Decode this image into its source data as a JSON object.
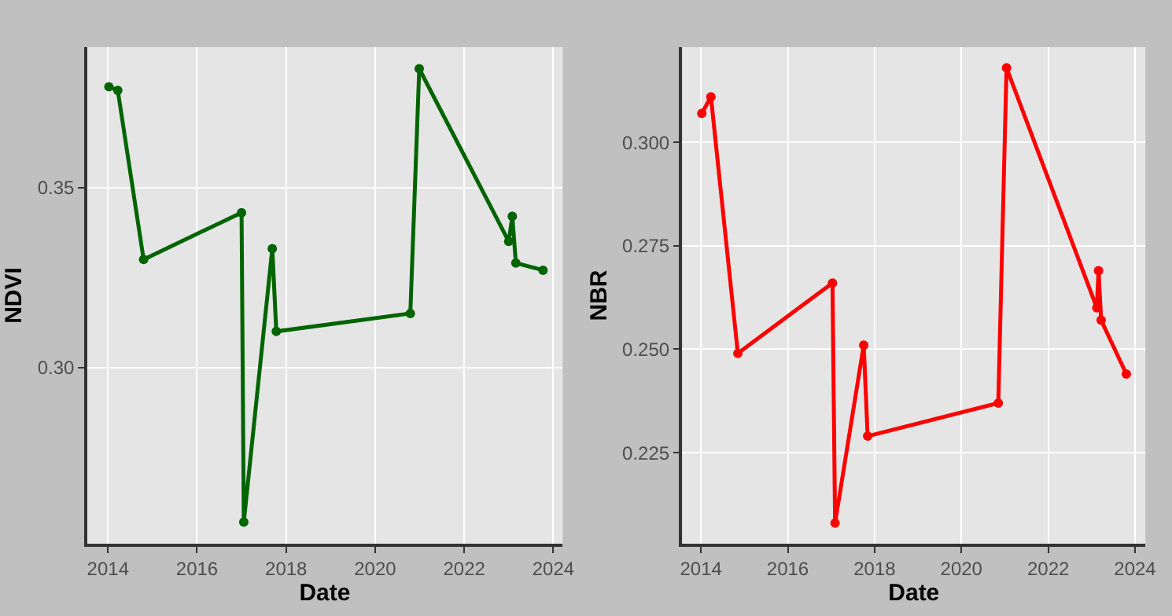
{
  "chart_data": [
    {
      "type": "line",
      "xlabel": "Date",
      "ylabel": "NDVI",
      "marker": "circle",
      "line_style": "solid",
      "grid": true,
      "x": [
        2014.02,
        2014.22,
        2014.8,
        2017.0,
        2017.05,
        2017.69,
        2017.78,
        2020.79,
        2020.99,
        2023.0,
        2023.08,
        2023.16,
        2023.77
      ],
      "series": [
        {
          "color": "#006400",
          "values": [
            0.378,
            0.377,
            0.33,
            0.343,
            0.257,
            0.333,
            0.31,
            0.315,
            0.383,
            0.335,
            0.342,
            0.329,
            0.327
          ]
        }
      ],
      "xlim": [
        2013.53,
        2024.21
      ],
      "ylim": [
        0.251,
        0.389
      ],
      "xticks": [
        2014,
        2016,
        2018,
        2020,
        2022,
        2024
      ],
      "yticks": [
        {
          "value": 0.3,
          "label": "0.30"
        },
        {
          "value": 0.35,
          "label": "0.35"
        }
      ]
    },
    {
      "type": "line",
      "xlabel": "Date",
      "ylabel": "NBR",
      "marker": "circle",
      "line_style": "solid",
      "grid": true,
      "x": [
        2014.02,
        2014.23,
        2014.85,
        2017.03,
        2017.09,
        2017.75,
        2017.84,
        2020.85,
        2021.04,
        2023.12,
        2023.16,
        2023.22,
        2023.8
      ],
      "series": [
        {
          "color": "#ff0000",
          "values": [
            0.307,
            0.311,
            0.249,
            0.266,
            0.208,
            0.251,
            0.229,
            0.237,
            0.318,
            0.26,
            0.269,
            0.257,
            0.244
          ]
        }
      ],
      "xlim": [
        2013.57,
        2024.24
      ],
      "ylim": [
        0.203,
        0.323
      ],
      "xticks": [
        2014,
        2016,
        2018,
        2020,
        2022,
        2024
      ],
      "yticks": [
        {
          "value": 0.225,
          "label": "0.225"
        },
        {
          "value": 0.25,
          "label": "0.250"
        },
        {
          "value": 0.275,
          "label": "0.275"
        },
        {
          "value": 0.3,
          "label": "0.300"
        }
      ]
    }
  ]
}
